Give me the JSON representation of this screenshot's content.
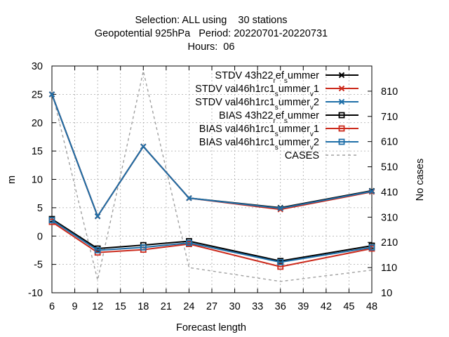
{
  "chart_data": {
    "type": "line",
    "title_lines": [
      "Selection: ALL using    30 stations",
      "Geopotential 925hPa   Period: 20220701-20220731",
      "Hours:  06"
    ],
    "xlabel": "Forecast length",
    "ylabel": "m",
    "y2label": "No cases",
    "x": [
      6,
      12,
      18,
      24,
      36,
      48
    ],
    "xlim": [
      6,
      48
    ],
    "xticks": [
      6,
      9,
      12,
      15,
      18,
      21,
      24,
      27,
      30,
      33,
      36,
      39,
      42,
      45,
      48
    ],
    "ylim": [
      -10,
      30
    ],
    "yticks": [
      -10,
      -5,
      0,
      5,
      10,
      15,
      20,
      25,
      30
    ],
    "y2lim": [
      10,
      910
    ],
    "y2ticks": [
      10,
      110,
      210,
      310,
      410,
      510,
      610,
      710,
      810
    ],
    "grid": true,
    "legend_position": "top-right",
    "series": [
      {
        "name": "STDV 43h22_ref_summer",
        "legend": [
          "STDV 43h22",
          "r",
          "ef",
          "s",
          "ummer",
          ""
        ],
        "axis": "y",
        "color": "#000000",
        "dash": false,
        "marker": "x",
        "values": [
          25.0,
          3.5,
          15.8,
          6.7,
          5.0,
          8.0
        ]
      },
      {
        "name": "STDV val46h1rc1_summer_v1",
        "legend": [
          "STDV val46h1rc1",
          "s",
          "ummer",
          "v",
          "1",
          ""
        ],
        "axis": "y",
        "color": "#cc2a1c",
        "dash": false,
        "marker": "x",
        "values": [
          25.0,
          3.5,
          15.8,
          6.7,
          4.7,
          7.8
        ]
      },
      {
        "name": "STDV val46h1rc1_summer_v2",
        "legend": [
          "STDV val46h1rc1",
          "s",
          "ummer",
          "v",
          "2",
          ""
        ],
        "axis": "y",
        "color": "#1f6fa8",
        "dash": false,
        "marker": "x",
        "values": [
          25.0,
          3.5,
          15.8,
          6.7,
          4.9,
          7.9
        ]
      },
      {
        "name": "BIAS 43h22_ref_summer",
        "legend": [
          "BIAS 43h22",
          "r",
          "ef",
          "s",
          "ummer",
          ""
        ],
        "axis": "y",
        "color": "#000000",
        "dash": false,
        "marker": "square",
        "values": [
          3.0,
          -2.2,
          -1.6,
          -0.9,
          -4.4,
          -1.7
        ]
      },
      {
        "name": "BIAS val46h1rc1_summer_v1",
        "legend": [
          "BIAS val46h1rc1",
          "s",
          "ummer",
          "v",
          "1",
          ""
        ],
        "axis": "y",
        "color": "#cc2a1c",
        "dash": false,
        "marker": "square",
        "values": [
          2.5,
          -2.9,
          -2.4,
          -1.4,
          -5.4,
          -2.2
        ]
      },
      {
        "name": "BIAS val46h1rc1_summer_v2",
        "legend": [
          "BIAS val46h1rc1",
          "s",
          "ummer",
          "v",
          "2",
          ""
        ],
        "axis": "y",
        "color": "#1f6fa8",
        "dash": false,
        "marker": "square",
        "values": [
          2.8,
          -2.5,
          -2.0,
          -1.2,
          -4.6,
          -2.0
        ]
      },
      {
        "name": "CASES",
        "legend": [
          "CASES",
          "",
          "",
          "",
          "",
          ""
        ],
        "axis": "y2",
        "color": "#a0a0a0",
        "dash": true,
        "marker": "none",
        "values": [
          810,
          60,
          890,
          110,
          55,
          100
        ]
      }
    ]
  }
}
